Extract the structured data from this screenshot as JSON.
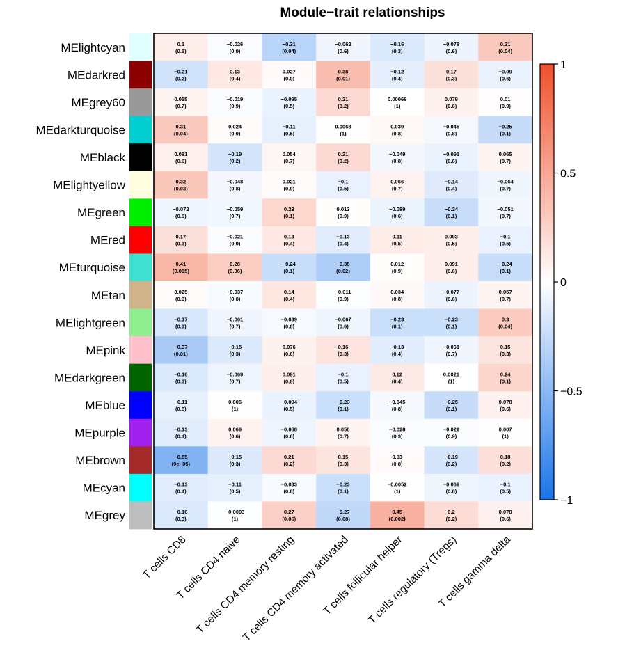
{
  "chart_data": {
    "type": "heatmap",
    "title": "Module−trait relationships",
    "rows": [
      {
        "name": "MElightcyan",
        "color": "#e0ffff"
      },
      {
        "name": "MEdarkred",
        "color": "#8b0000"
      },
      {
        "name": "MEgrey60",
        "color": "#999999"
      },
      {
        "name": "MEdarkturquoise",
        "color": "#00ced1"
      },
      {
        "name": "MEblack",
        "color": "#000000"
      },
      {
        "name": "MElightyellow",
        "color": "#ffffe0"
      },
      {
        "name": "MEgreen",
        "color": "#00ee00"
      },
      {
        "name": "MEred",
        "color": "#ff0000"
      },
      {
        "name": "MEturquoise",
        "color": "#40e0d0"
      },
      {
        "name": "MEtan",
        "color": "#d2b48c"
      },
      {
        "name": "MElightgreen",
        "color": "#90ee90"
      },
      {
        "name": "MEpink",
        "color": "#ffc0cb"
      },
      {
        "name": "MEdarkgreen",
        "color": "#006400"
      },
      {
        "name": "MEblue",
        "color": "#0000ff"
      },
      {
        "name": "MEpurple",
        "color": "#a020f0"
      },
      {
        "name": "MEbrown",
        "color": "#a52a2a"
      },
      {
        "name": "MEcyan",
        "color": "#00ffff"
      },
      {
        "name": "MEgrey",
        "color": "#bebebe"
      }
    ],
    "columns": [
      "T cells CD8",
      "T cells CD4 naive",
      "T cells CD4 memory resting",
      "T cells CD4 memory activated",
      "T cells follicular helper",
      "T cells regulatory (Tregs)",
      "T cells gamma delta"
    ],
    "values": [
      [
        0.1,
        -0.026,
        -0.31,
        -0.062,
        -0.16,
        -0.078,
        0.31
      ],
      [
        -0.21,
        0.13,
        0.027,
        0.38,
        -0.12,
        0.17,
        -0.09
      ],
      [
        0.055,
        -0.019,
        -0.095,
        0.21,
        0.00068,
        0.079,
        0.01
      ],
      [
        0.31,
        0.024,
        -0.11,
        0.0068,
        0.039,
        -0.045,
        -0.25
      ],
      [
        0.081,
        -0.19,
        0.054,
        0.21,
        -0.049,
        -0.091,
        0.065
      ],
      [
        0.32,
        -0.048,
        0.021,
        -0.1,
        0.066,
        -0.14,
        -0.064
      ],
      [
        -0.072,
        -0.059,
        0.23,
        0.013,
        -0.089,
        -0.24,
        -0.051
      ],
      [
        0.17,
        -0.021,
        0.13,
        -0.13,
        0.11,
        0.093,
        -0.1
      ],
      [
        0.41,
        0.28,
        -0.24,
        -0.35,
        0.012,
        0.091,
        -0.24
      ],
      [
        0.025,
        -0.037,
        0.14,
        -0.011,
        0.034,
        -0.077,
        0.057
      ],
      [
        -0.17,
        -0.061,
        -0.039,
        -0.067,
        -0.23,
        -0.23,
        0.3
      ],
      [
        -0.37,
        -0.15,
        0.076,
        0.16,
        -0.13,
        -0.061,
        0.15
      ],
      [
        -0.16,
        -0.069,
        0.091,
        -0.1,
        0.12,
        0.0021,
        0.24
      ],
      [
        -0.11,
        0.006,
        -0.094,
        -0.23,
        -0.045,
        -0.25,
        0.078
      ],
      [
        -0.13,
        0.069,
        -0.068,
        0.056,
        -0.028,
        -0.022,
        0.007
      ],
      [
        -0.55,
        -0.15,
        0.21,
        0.15,
        0.03,
        -0.19,
        0.18
      ],
      [
        -0.13,
        -0.11,
        -0.033,
        -0.23,
        -0.0052,
        -0.069,
        -0.1
      ],
      [
        -0.16,
        -0.0093,
        0.27,
        -0.27,
        0.45,
        0.2,
        0.078
      ]
    ],
    "value_labels": [
      [
        "0.1",
        "−0.026",
        "−0.31",
        "−0.062",
        "−0.16",
        "−0.078",
        "0.31"
      ],
      [
        "−0.21",
        "0.13",
        "0.027",
        "0.38",
        "−0.12",
        "0.17",
        "−0.09"
      ],
      [
        "0.055",
        "−0.019",
        "−0.095",
        "0.21",
        "0.00068",
        "0.079",
        "0.01"
      ],
      [
        "0.31",
        "0.024",
        "−0.11",
        "0.0068",
        "0.039",
        "−0.045",
        "−0.25"
      ],
      [
        "0.081",
        "−0.19",
        "0.054",
        "0.21",
        "−0.049",
        "−0.091",
        "0.065"
      ],
      [
        "0.32",
        "−0.048",
        "0.021",
        "−0.1",
        "0.066",
        "−0.14",
        "−0.064"
      ],
      [
        "−0.072",
        "−0.059",
        "0.23",
        "0.013",
        "−0.089",
        "−0.24",
        "−0.051"
      ],
      [
        "0.17",
        "−0.021",
        "0.13",
        "−0.13",
        "0.11",
        "0.093",
        "−0.1"
      ],
      [
        "0.41",
        "0.28",
        "−0.24",
        "−0.35",
        "0.012",
        "0.091",
        "−0.24"
      ],
      [
        "0.025",
        "−0.037",
        "0.14",
        "−0.011",
        "0.034",
        "−0.077",
        "0.057"
      ],
      [
        "−0.17",
        "−0.061",
        "−0.039",
        "−0.067",
        "−0.23",
        "−0.23",
        "0.3"
      ],
      [
        "−0.37",
        "−0.15",
        "0.076",
        "0.16",
        "−0.13",
        "−0.061",
        "0.15"
      ],
      [
        "−0.16",
        "−0.069",
        "0.091",
        "−0.1",
        "0.12",
        "0.0021",
        "0.24"
      ],
      [
        "−0.11",
        "0.006",
        "−0.094",
        "−0.23",
        "−0.045",
        "−0.25",
        "0.078"
      ],
      [
        "−0.13",
        "0.069",
        "−0.068",
        "0.056",
        "−0.028",
        "−0.022",
        "0.007"
      ],
      [
        "−0.55",
        "−0.15",
        "0.21",
        "0.15",
        "0.03",
        "−0.19",
        "0.18"
      ],
      [
        "−0.13",
        "−0.11",
        "−0.033",
        "−0.23",
        "−0.0052",
        "−0.069",
        "−0.1"
      ],
      [
        "−0.16",
        "−0.0093",
        "0.27",
        "−0.27",
        "0.45",
        "0.2",
        "0.078"
      ]
    ],
    "pvalues": [
      [
        "(0.5)",
        "(0.9)",
        "(0.04)",
        "(0.6)",
        "(0.3)",
        "(0.6)",
        "(0.04)"
      ],
      [
        "(0.2)",
        "(0.4)",
        "(0.9)",
        "(0.01)",
        "(0.4)",
        "(0.3)",
        "(0.6)"
      ],
      [
        "(0.7)",
        "(0.9)",
        "(0.5)",
        "(0.2)",
        "(1)",
        "(0.6)",
        "(0.9)"
      ],
      [
        "(0.04)",
        "(0.9)",
        "(0.5)",
        "(1)",
        "(0.8)",
        "(0.8)",
        "(0.1)"
      ],
      [
        "(0.6)",
        "(0.2)",
        "(0.7)",
        "(0.2)",
        "(0.8)",
        "(0.6)",
        "(0.7)"
      ],
      [
        "(0.03)",
        "(0.8)",
        "(0.9)",
        "(0.5)",
        "(0.7)",
        "(0.4)",
        "(0.7)"
      ],
      [
        "(0.6)",
        "(0.7)",
        "(0.1)",
        "(0.9)",
        "(0.6)",
        "(0.1)",
        "(0.7)"
      ],
      [
        "(0.3)",
        "(0.9)",
        "(0.4)",
        "(0.4)",
        "(0.5)",
        "(0.5)",
        "(0.5)"
      ],
      [
        "(0.005)",
        "(0.06)",
        "(0.1)",
        "(0.02)",
        "(0.9)",
        "(0.6)",
        "(0.1)"
      ],
      [
        "(0.9)",
        "(0.8)",
        "(0.4)",
        "(0.9)",
        "(0.8)",
        "(0.6)",
        "(0.7)"
      ],
      [
        "(0.3)",
        "(0.7)",
        "(0.8)",
        "(0.6)",
        "(0.1)",
        "(0.1)",
        "(0.04)"
      ],
      [
        "(0.01)",
        "(0.3)",
        "(0.6)",
        "(0.3)",
        "(0.4)",
        "(0.7)",
        "(0.3)"
      ],
      [
        "(0.3)",
        "(0.7)",
        "(0.6)",
        "(0.5)",
        "(0.4)",
        "(1)",
        "(0.1)"
      ],
      [
        "(0.5)",
        "(1)",
        "(0.5)",
        "(0.1)",
        "(0.8)",
        "(0.1)",
        "(0.6)"
      ],
      [
        "(0.4)",
        "(0.6)",
        "(0.6)",
        "(0.7)",
        "(0.9)",
        "(0.9)",
        "(1)"
      ],
      [
        "(9e−05)",
        "(0.3)",
        "(0.2)",
        "(0.3)",
        "(0.8)",
        "(0.2)",
        "(0.2)"
      ],
      [
        "(0.4)",
        "(0.5)",
        "(0.8)",
        "(0.1)",
        "(1)",
        "(0.6)",
        "(0.5)"
      ],
      [
        "(0.3)",
        "(1)",
        "(0.06)",
        "(0.08)",
        "(0.002)",
        "(0.2)",
        "(0.6)"
      ]
    ],
    "colorbar": {
      "range": [
        -1,
        1
      ],
      "ticks": [
        1,
        0.5,
        0,
        -0.5,
        -1
      ],
      "tick_labels": [
        "1",
        "0.5",
        "0",
        "−0.5",
        "−1"
      ],
      "low_color": "#1a73e8",
      "mid_color": "#ffffff",
      "high_color": "#f0502c"
    }
  }
}
